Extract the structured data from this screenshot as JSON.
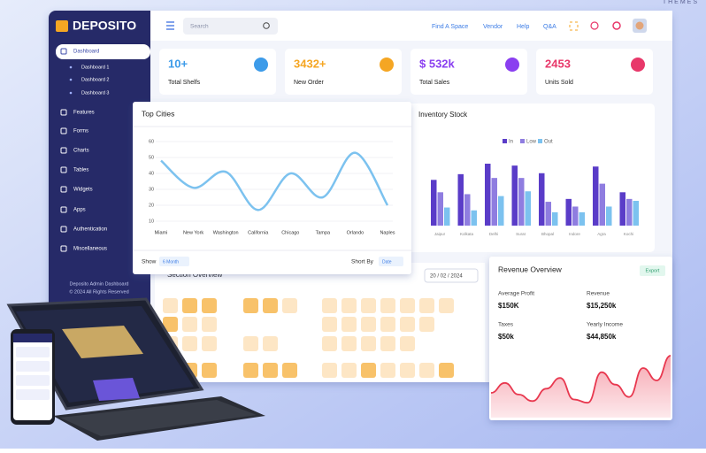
{
  "watermark": "THEMES",
  "brand": "DEPOSITO",
  "sidebar": {
    "menu": [
      "Dashboard",
      "Features",
      "Forms",
      "Charts",
      "Tables",
      "Widgets",
      "Apps",
      "Authentication",
      "Miscellaneous"
    ],
    "submenu": [
      "Dashboard 1",
      "Dashboard 2",
      "Dashboard 3"
    ],
    "footer": [
      "Deposito Admin Dashboard",
      "© 2024 All Rights Reserved"
    ]
  },
  "header": {
    "search": "Search",
    "links": [
      "Find A Space",
      "Vendor",
      "Help",
      "Q&A"
    ]
  },
  "stats": [
    {
      "value": "10+",
      "label": "Total Shelfs",
      "color": "#3d9be9"
    },
    {
      "value": "3432+",
      "label": "New Order",
      "color": "#f5a623"
    },
    {
      "value": "$ 532k",
      "label": "Total Sales",
      "color": "#8a3ff0"
    },
    {
      "value": "2453",
      "label": "Units Sold",
      "color": "#e8386a"
    }
  ],
  "top_cities": {
    "type": "line",
    "title": "Top Cities",
    "categories": [
      "Miami",
      "New York",
      "Washington",
      "California",
      "Chicago",
      "Tampa",
      "Orlando",
      "Naples"
    ],
    "values": [
      48,
      31,
      41,
      17,
      40,
      25,
      53,
      20
    ],
    "ylim": [
      10,
      60
    ],
    "yticks": [
      10,
      20,
      30,
      40,
      50,
      60
    ],
    "color": "#7cc2ef",
    "show_label": "Show",
    "show_value": "6 Month",
    "sort_label": "Short By",
    "sort_value": "Date"
  },
  "inventory": {
    "type": "bar",
    "title": "Inventory Stock",
    "categories": [
      "Jaipur",
      "Kolkata",
      "Delhi",
      "Surat",
      "Bhopal",
      "Indore",
      "Agra",
      "Kochi"
    ],
    "series": [
      {
        "name": "In",
        "color": "#5a3cc8",
        "values": [
          48,
          54,
          65,
          63,
          55,
          28,
          62,
          35
        ]
      },
      {
        "name": "Low",
        "color": "#8f7de0",
        "values": [
          35,
          33,
          50,
          50,
          25,
          20,
          44,
          28
        ]
      },
      {
        "name": "Out",
        "color": "#7cc2ef",
        "values": [
          19,
          16,
          31,
          36,
          14,
          14,
          20,
          26
        ]
      }
    ]
  },
  "section": {
    "title": "Section Overview",
    "date": "20 / 02 / 2024"
  },
  "revenue": {
    "title": "Revenue Overview",
    "button": "Export",
    "metrics": [
      {
        "label": "Average Profit",
        "value": "$150K"
      },
      {
        "label": "Revenue",
        "value": "$15,250k"
      },
      {
        "label": "Taxes",
        "value": "$50k"
      },
      {
        "label": "Yearly Income",
        "value": "$44,850k"
      }
    ],
    "chart": {
      "type": "area",
      "values": [
        30,
        42,
        28,
        20,
        35,
        48,
        22,
        18,
        55,
        40,
        25,
        60,
        45,
        75
      ],
      "color": "#e8384f"
    }
  }
}
